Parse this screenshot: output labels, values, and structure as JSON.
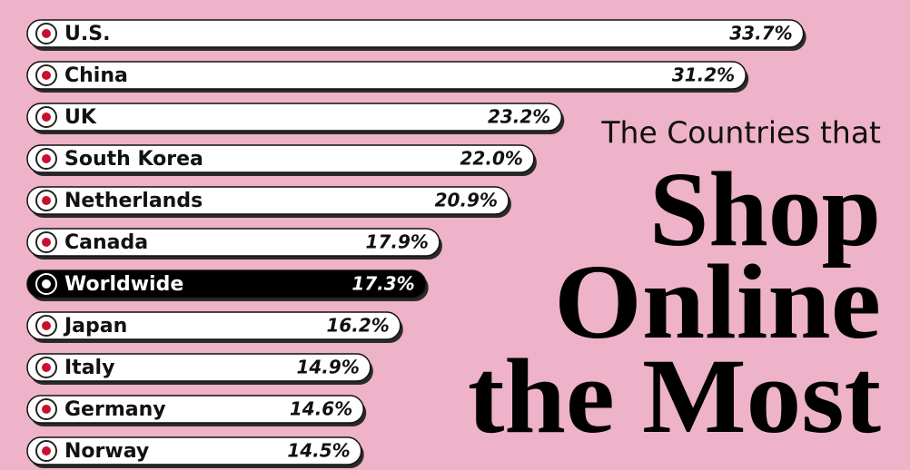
{
  "chart_data": {
    "type": "bar",
    "orientation": "horizontal",
    "title_lines": [
      "The Countries that",
      "Shop",
      "Online",
      "the Most"
    ],
    "categories": [
      "U.S.",
      "China",
      "UK",
      "South Korea",
      "Netherlands",
      "Canada",
      "Worldwide",
      "Japan",
      "Italy",
      "Germany",
      "Norway"
    ],
    "values": [
      33.7,
      31.2,
      23.2,
      22.0,
      20.9,
      17.9,
      17.3,
      16.2,
      14.9,
      14.6,
      14.5
    ],
    "value_labels": [
      "33.7%",
      "31.2%",
      "23.2%",
      "22.0%",
      "20.9%",
      "17.9%",
      "17.3%",
      "16.2%",
      "14.9%",
      "14.6%",
      "14.5%"
    ],
    "bar_colors": [
      "#ffffff",
      "#ffffff",
      "#ffffff",
      "#ffffff",
      "#ffffff",
      "#ffffff",
      "#000000",
      "#ffffff",
      "#ffffff",
      "#ffffff",
      "#ffffff"
    ]
  }
}
